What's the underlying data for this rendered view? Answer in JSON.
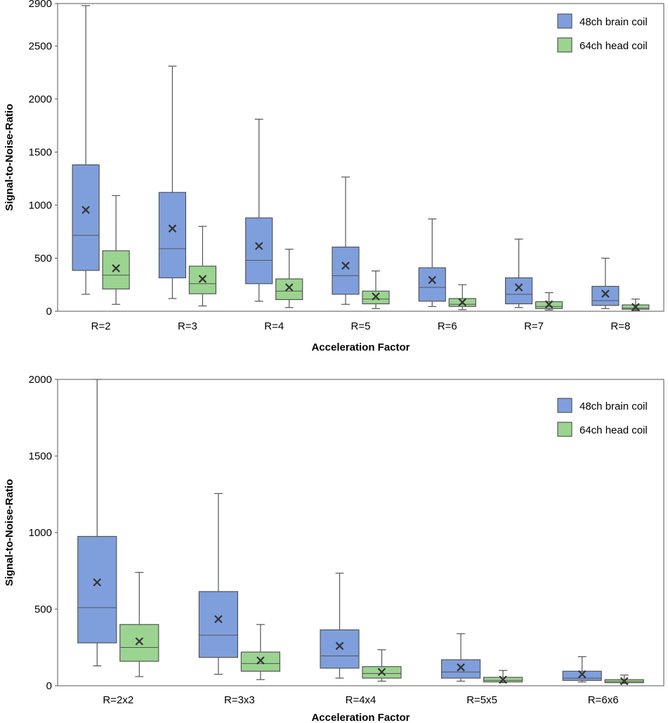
{
  "chart_data": [
    {
      "type": "boxplot",
      "title": "",
      "xlabel": "Acceleration Factor",
      "ylabel": "Signal-to-Noise-Ratio",
      "ylim": [
        0,
        2900
      ],
      "yticks": [
        0,
        500,
        1000,
        1500,
        2000,
        2500,
        2900
      ],
      "grid": false,
      "legend_position": "top-right",
      "categories": [
        "R=2",
        "R=3",
        "R=4",
        "R=5",
        "R=6",
        "R=7",
        "R=8"
      ],
      "series": [
        {
          "name": "48ch brain coil",
          "color": "#7f9fdc",
          "boxes": [
            {
              "min": 160,
              "q1": 385,
              "median": 715,
              "q3": 1380,
              "max": 2880,
              "mean": 955
            },
            {
              "min": 120,
              "q1": 315,
              "median": 590,
              "q3": 1120,
              "max": 2310,
              "mean": 780
            },
            {
              "min": 95,
              "q1": 260,
              "median": 480,
              "q3": 880,
              "max": 1810,
              "mean": 615
            },
            {
              "min": 65,
              "q1": 160,
              "median": 335,
              "q3": 605,
              "max": 1265,
              "mean": 430
            },
            {
              "min": 45,
              "q1": 95,
              "median": 225,
              "q3": 410,
              "max": 870,
              "mean": 295
            },
            {
              "min": 35,
              "q1": 70,
              "median": 160,
              "q3": 315,
              "max": 680,
              "mean": 225
            },
            {
              "min": 25,
              "q1": 55,
              "median": 100,
              "q3": 235,
              "max": 500,
              "mean": 165
            }
          ]
        },
        {
          "name": "64ch head coil",
          "color": "#9bd490",
          "boxes": [
            {
              "min": 65,
              "q1": 210,
              "median": 340,
              "q3": 570,
              "max": 1090,
              "mean": 405
            },
            {
              "min": 50,
              "q1": 165,
              "median": 260,
              "q3": 425,
              "max": 800,
              "mean": 305
            },
            {
              "min": 35,
              "q1": 110,
              "median": 190,
              "q3": 305,
              "max": 585,
              "mean": 225
            },
            {
              "min": 25,
              "q1": 70,
              "median": 115,
              "q3": 190,
              "max": 380,
              "mean": 140
            },
            {
              "min": 15,
              "q1": 45,
              "median": 65,
              "q3": 120,
              "max": 250,
              "mean": 85
            },
            {
              "min": 12,
              "q1": 25,
              "median": 45,
              "q3": 90,
              "max": 175,
              "mean": 65
            },
            {
              "min": 8,
              "q1": 18,
              "median": 30,
              "q3": 60,
              "max": 115,
              "mean": 40
            }
          ]
        }
      ]
    },
    {
      "type": "boxplot",
      "title": "",
      "xlabel": "Acceleration Factor",
      "ylabel": "Signal-to-Noise-Ratio",
      "ylim": [
        0,
        2000
      ],
      "yticks": [
        0,
        500,
        1000,
        1500,
        2000
      ],
      "grid": false,
      "legend_position": "top-right",
      "categories": [
        "R=2x2",
        "R=3x3",
        "R=4x4",
        "R=5x5",
        "R=6x6"
      ],
      "series": [
        {
          "name": "48ch brain coil",
          "color": "#7f9fdc",
          "boxes": [
            {
              "min": 130,
              "q1": 280,
              "median": 510,
              "q3": 975,
              "max": 2000,
              "mean": 675
            },
            {
              "min": 75,
              "q1": 185,
              "median": 330,
              "q3": 615,
              "max": 1255,
              "mean": 435
            },
            {
              "min": 50,
              "q1": 115,
              "median": 195,
              "q3": 365,
              "max": 735,
              "mean": 260
            },
            {
              "min": 30,
              "q1": 50,
              "median": 90,
              "q3": 170,
              "max": 340,
              "mean": 120
            },
            {
              "min": 25,
              "q1": 35,
              "median": 50,
              "q3": 95,
              "max": 190,
              "mean": 75
            }
          ]
        },
        {
          "name": "64ch head coil",
          "color": "#9bd490",
          "boxes": [
            {
              "min": 60,
              "q1": 160,
              "median": 250,
              "q3": 400,
              "max": 740,
              "mean": 290
            },
            {
              "min": 40,
              "q1": 95,
              "median": 145,
              "q3": 220,
              "max": 400,
              "mean": 165
            },
            {
              "min": 30,
              "q1": 50,
              "median": 80,
              "q3": 125,
              "max": 235,
              "mean": 90
            },
            {
              "min": 20,
              "q1": 25,
              "median": 35,
              "q3": 55,
              "max": 100,
              "mean": 40
            },
            {
              "min": 15,
              "q1": 20,
              "median": 28,
              "q3": 40,
              "max": 70,
              "mean": 30
            }
          ]
        }
      ]
    }
  ]
}
